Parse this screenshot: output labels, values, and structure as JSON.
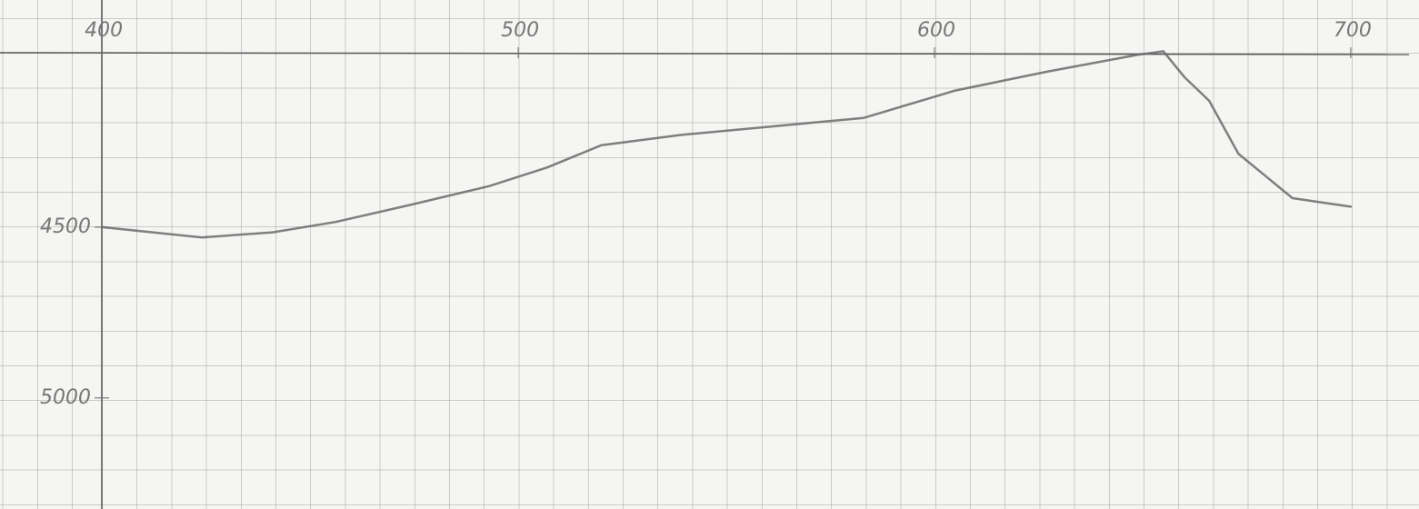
{
  "chart_data": {
    "type": "line",
    "x": [
      400,
      424,
      441,
      456,
      474,
      493,
      507,
      520,
      539,
      561,
      583,
      605,
      627,
      649,
      655,
      660,
      666,
      673,
      686,
      700
    ],
    "values": [
      4500,
      4530,
      4515,
      4485,
      4435,
      4380,
      4325,
      4260,
      4230,
      4205,
      4180,
      4100,
      4045,
      3995,
      3985,
      4060,
      4130,
      4285,
      4415,
      4440
    ],
    "color": "#6a6a6a",
    "xlim": [
      375.5,
      716.4
    ],
    "xticks": [
      400,
      500,
      600,
      700
    ],
    "ylim": [
      5325,
      3835
    ],
    "yticks": [
      4500,
      5000
    ]
  }
}
